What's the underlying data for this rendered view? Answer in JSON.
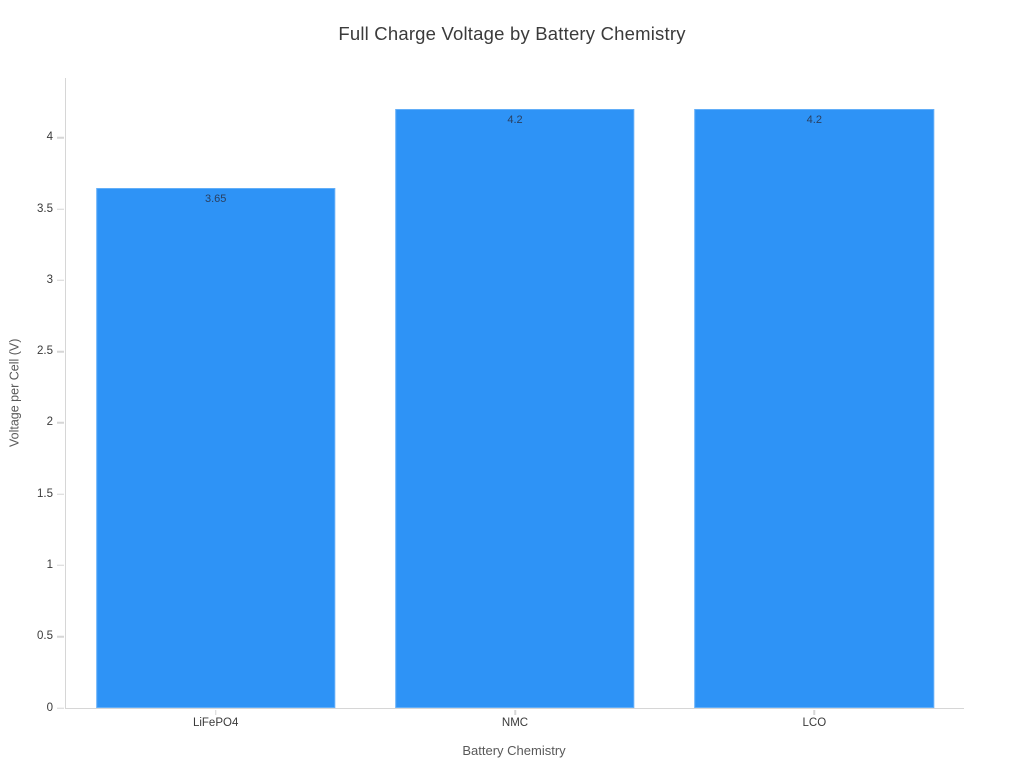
{
  "chart_data": {
    "type": "bar",
    "title": "Full Charge Voltage by Battery Chemistry",
    "xlabel": "Battery Chemistry",
    "ylabel": "Voltage per Cell (V)",
    "categories": [
      "LiFePO4",
      "NMC",
      "LCO"
    ],
    "values": [
      3.65,
      4.2,
      4.2
    ],
    "value_labels": [
      "3.65",
      "4.2",
      "4.2"
    ],
    "ylim": [
      0,
      4.42
    ],
    "yticks": [
      0,
      0.5,
      1,
      1.5,
      2,
      2.5,
      3,
      3.5,
      4
    ],
    "bar_width_fraction": 0.8,
    "grid": false,
    "legend": "none"
  },
  "colors": {
    "bar": "#2E93F6",
    "axis_line": "#d6d6d6",
    "tick_label": "#3a3a3a",
    "value_label": "#2a3f5f",
    "title_text": "#3b3b3b",
    "axis_title_text": "#595959",
    "background": "#ffffff"
  }
}
